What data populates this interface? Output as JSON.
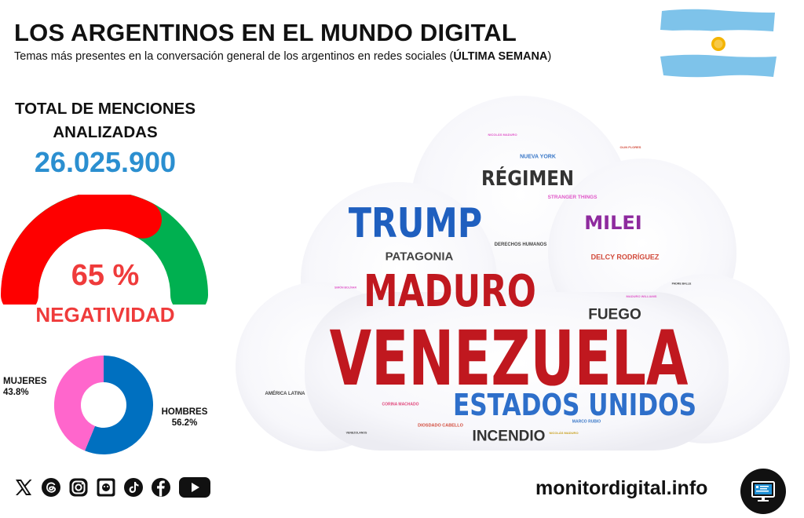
{
  "header": {
    "title": "LOS ARGENTINOS EN EL MUNDO DIGITAL",
    "subtitle_pre": "Temas más presentes en la conversación general de los argentinos en redes sociales (",
    "subtitle_bold": "ÚLTIMA SEMANA",
    "subtitle_post": ")"
  },
  "flag": {
    "icon": "argentina-flag-icon",
    "colors": {
      "blue": "#7ec3ea",
      "white": "#ffffff",
      "sun": "#f4b400"
    }
  },
  "totals": {
    "label": "TOTAL DE MENCIONES ANALIZADAS",
    "value": "26.025.900",
    "value_color": "#2b8fd0"
  },
  "sentiment": {
    "percent_label": "65 %",
    "label": "NEGATIVIDAD",
    "negative_share": 0.65,
    "colors": {
      "negative": "#fe0000",
      "positive": "#00b050",
      "text": "#ef3b3b"
    }
  },
  "gender": {
    "women": {
      "label": "MUJERES",
      "value": "43.8%",
      "share": 0.438,
      "color": "#ff66cc"
    },
    "men": {
      "label": "HOMBRES",
      "value": "56.2%",
      "share": 0.562,
      "color": "#0070c0"
    }
  },
  "social": [
    "x-icon",
    "threads-icon",
    "instagram-icon",
    "digital-icon",
    "tiktok-icon",
    "facebook-icon",
    "youtube-icon"
  ],
  "footer": {
    "site": "monitordigital.info",
    "button_icon": "monitor-icon"
  },
  "word_cloud": {
    "words": [
      {
        "text": "VENEZUELA",
        "color": "#c0181f"
      },
      {
        "text": "MADURO",
        "color": "#c0181f"
      },
      {
        "text": "TRUMP",
        "color": "#1f5fbf"
      },
      {
        "text": "ESTADOS UNIDOS",
        "color": "#2e6fca"
      },
      {
        "text": "RÉGIMEN",
        "color": "#333333"
      },
      {
        "text": "MILEI",
        "color": "#8e2a9e"
      },
      {
        "text": "FUEGO",
        "color": "#333333"
      },
      {
        "text": "INCENDIO",
        "color": "#333333"
      },
      {
        "text": "PATAGONIA",
        "color": "#444444"
      },
      {
        "text": "DELCY RODRÍGUEZ",
        "color": "#d24a3a"
      },
      {
        "text": "NUEVA YORK",
        "color": "#3a78c8"
      },
      {
        "text": "STRANGER THINGS",
        "color": "#e056c8"
      },
      {
        "text": "DERECHOS HUMANOS",
        "color": "#444444"
      },
      {
        "text": "AMÉRICA LATINA",
        "color": "#444444"
      },
      {
        "text": "CORINA MACHADO",
        "color": "#e0457a"
      },
      {
        "text": "DIOSDADO CABELLO",
        "color": "#d24a3a"
      },
      {
        "text": "MARCO RUBIO",
        "color": "#3a78c8"
      },
      {
        "text": "NICOLÁS MADURO",
        "color": "#e056c8"
      },
      {
        "text": "NICOLÁS MADURO",
        "color": "#c8a020"
      },
      {
        "text": "OLIN FLORES",
        "color": "#d24a3a"
      },
      {
        "text": "MADURO WILLIAMS",
        "color": "#e056c8"
      },
      {
        "text": "PADRE BALLE",
        "color": "#444444"
      },
      {
        "text": "SIMÓN BOLÍVAR",
        "color": "#e056c8"
      },
      {
        "text": "VENEZOLANOS",
        "color": "#444444"
      }
    ]
  }
}
